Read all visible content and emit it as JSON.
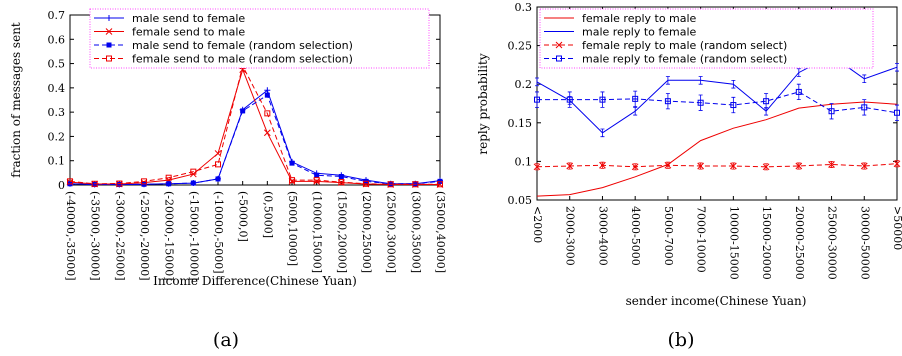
{
  "chart_data": [
    {
      "type": "line",
      "caption": "(a)",
      "xlabel": "Income Difference(Chinese Yuan)",
      "ylabel": "fraction of messages sent",
      "ylim": [
        0,
        0.7
      ],
      "yticks": [
        0,
        0.1,
        0.2,
        0.3,
        0.4,
        0.5,
        0.6,
        0.7
      ],
      "categories": [
        "(-40000,-35000]",
        "(-35000,-30000]",
        "(-30000,-25000]",
        "(-25000,-20000]",
        "(-20000,-15000]",
        "(-15000,-10000]",
        "(-10000,-5000]",
        "(-5000,0]",
        "(0,5000]",
        "(5000,10000]",
        "(10000,15000]",
        "(15000,20000]",
        "(20000,25000]",
        "(25000,30000]",
        "(30000,35000]",
        "(35000,40000]"
      ],
      "legend_position": "top-center",
      "grid": false,
      "series": [
        {
          "name": "male send to female",
          "color": "#0000ee",
          "dash": "solid",
          "marker": "plus",
          "values": [
            0.005,
            0.002,
            0.002,
            0.003,
            0.005,
            0.008,
            0.025,
            0.31,
            0.39,
            0.095,
            0.048,
            0.04,
            0.02,
            0.005,
            0.005,
            0.018
          ]
        },
        {
          "name": "female send to male",
          "color": "#ee0000",
          "dash": "solid",
          "marker": "cross",
          "values": [
            0.012,
            0.004,
            0.004,
            0.01,
            0.02,
            0.045,
            0.13,
            0.475,
            0.215,
            0.015,
            0.015,
            0.01,
            0.004,
            0.002,
            0.002,
            0.002
          ]
        },
        {
          "name": "male send to female (random selection)",
          "color": "#0000ee",
          "dash": "dash",
          "marker": "filled-square",
          "values": [
            0.005,
            0.002,
            0.002,
            0.003,
            0.005,
            0.008,
            0.025,
            0.305,
            0.37,
            0.09,
            0.04,
            0.035,
            0.015,
            0.005,
            0.005,
            0.015
          ]
        },
        {
          "name": "female send to male (random selection)",
          "color": "#ee0000",
          "dash": "dash",
          "marker": "square",
          "values": [
            0.015,
            0.005,
            0.006,
            0.015,
            0.03,
            0.055,
            0.085,
            0.49,
            0.295,
            0.02,
            0.02,
            0.012,
            0.005,
            0.003,
            0.003,
            0.003
          ]
        }
      ]
    },
    {
      "type": "line",
      "caption": "(b)",
      "xlabel": "sender income(Chinese Yuan)",
      "ylabel": "reply probability",
      "ylim": [
        0.05,
        0.3
      ],
      "yticks": [
        0.05,
        0.1,
        0.15,
        0.2,
        0.25,
        0.3
      ],
      "categories": [
        "<2000",
        "2000-3000",
        "3000-4000",
        "4000-5000",
        "5000-7000",
        "7000-10000",
        "10000-15000",
        "15000-20000",
        "20000-25000",
        "25000-30000",
        "30000-50000",
        ">50000"
      ],
      "legend_position": "top-center",
      "grid": false,
      "series": [
        {
          "name": "female reply to male",
          "color": "#ee0000",
          "dash": "solid",
          "marker": "none",
          "values": [
            0.055,
            0.057,
            0.066,
            0.08,
            0.096,
            0.127,
            0.143,
            0.154,
            0.169,
            0.174,
            0.177,
            0.174
          ]
        },
        {
          "name": "male reply to female",
          "color": "#0000ee",
          "dash": "solid",
          "marker": "none",
          "values": [
            0.203,
            0.179,
            0.137,
            0.165,
            0.205,
            0.205,
            0.2,
            0.165,
            0.215,
            0.237,
            0.207,
            0.222
          ],
          "error": 0.005
        },
        {
          "name": "female reply to male (random select)",
          "color": "#ee0000",
          "dash": "dash",
          "marker": "cross",
          "values": [
            0.093,
            0.094,
            0.095,
            0.093,
            0.095,
            0.094,
            0.094,
            0.093,
            0.094,
            0.096,
            0.094,
            0.097
          ],
          "error": 0.004
        },
        {
          "name": "male reply to female (random select)",
          "color": "#0000ee",
          "dash": "dash",
          "marker": "square",
          "values": [
            0.18,
            0.18,
            0.18,
            0.181,
            0.178,
            0.176,
            0.173,
            0.178,
            0.19,
            0.165,
            0.17,
            0.163
          ],
          "error": 0.01
        }
      ]
    }
  ]
}
